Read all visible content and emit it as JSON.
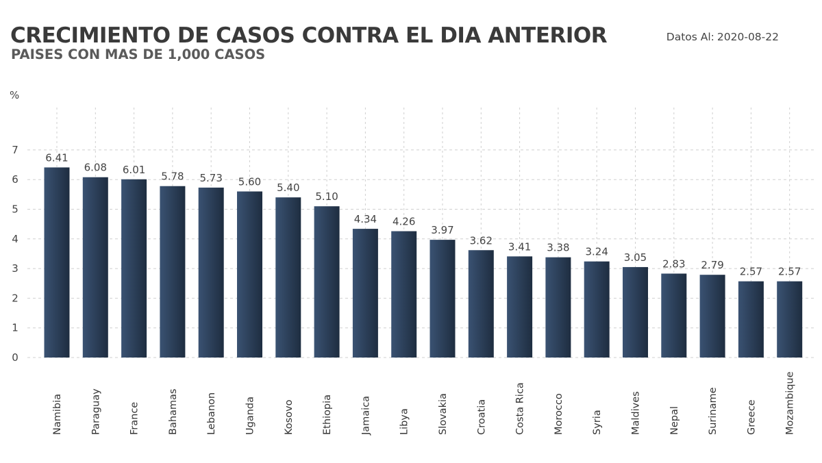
{
  "header": {
    "title": "CRECIMIENTO DE CASOS CONTRA EL DIA ANTERIOR",
    "subtitle": "PAISES CON MAS DE 1,000 CASOS",
    "date_label": "Datos Al:",
    "date_value": "2020-08-22"
  },
  "chart_data": {
    "type": "bar",
    "title": "CRECIMIENTO DE CASOS CONTRA EL DIA ANTERIOR",
    "subtitle": "PAISES CON MAS DE 1,000 CASOS",
    "ylabel": "%",
    "xlabel": "",
    "ylim": [
      0,
      8.5
    ],
    "yticks": [
      0,
      1,
      2,
      3,
      4,
      5,
      6,
      7
    ],
    "grid": true,
    "categories": [
      "Namibia",
      "Paraguay",
      "France",
      "Bahamas",
      "Lebanon",
      "Uganda",
      "Kosovo",
      "Ethiopia",
      "Jamaica",
      "Libya",
      "Slovakia",
      "Croatia",
      "Costa Rica",
      "Morocco",
      "Syria",
      "Maldives",
      "Nepal",
      "Suriname",
      "Greece",
      "Mozambique"
    ],
    "values": [
      6.41,
      6.08,
      6.01,
      5.78,
      5.73,
      5.6,
      5.4,
      5.1,
      4.34,
      4.26,
      3.97,
      3.62,
      3.41,
      3.38,
      3.24,
      3.05,
      2.83,
      2.79,
      2.57,
      2.57
    ],
    "value_labels": [
      "6.41",
      "6.08",
      "6.01",
      "5.78",
      "5.73",
      "5.60",
      "5.40",
      "5.10",
      "4.34",
      "4.26",
      "3.97",
      "3.62",
      "3.41",
      "3.38",
      "3.24",
      "3.05",
      "2.83",
      "2.79",
      "2.57",
      "2.57"
    ],
    "colors": {
      "bar_top": "#2c3e55",
      "bar_dark": "#1e2d40",
      "bar_light": "#3a5272",
      "grid": "#cfcfcf"
    }
  }
}
